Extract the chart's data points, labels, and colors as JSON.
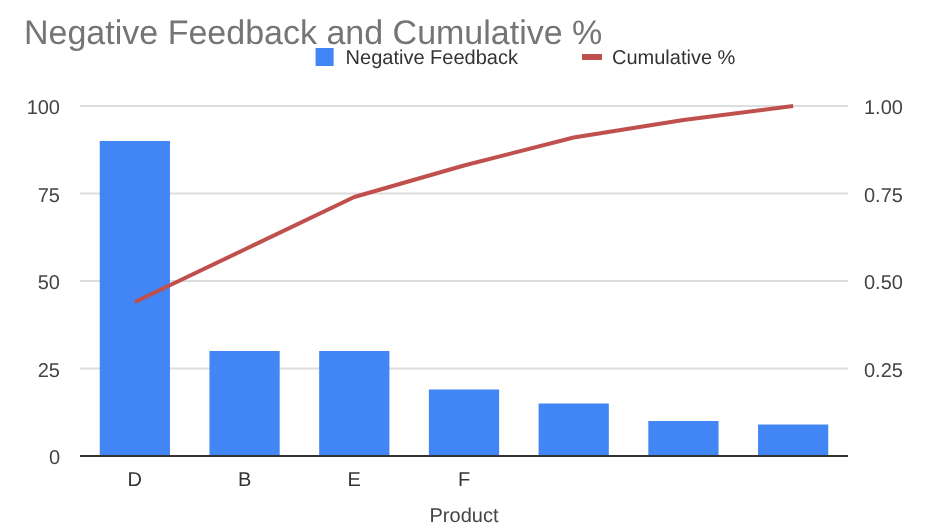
{
  "chart_data": {
    "type": "bar",
    "title": "Negative Feedback and Cumulative %",
    "xlabel": "Product",
    "categories": [
      "D",
      "B",
      "E",
      "F",
      null,
      null,
      null
    ],
    "series": [
      {
        "name": "Negative Feedback",
        "color": "#4285f4",
        "values": [
          90,
          30,
          30,
          19,
          15,
          10,
          9
        ]
      },
      {
        "name": "Cumulative %",
        "type": "line",
        "axis": "y2",
        "color": "#c0504d",
        "values": [
          0.44,
          0.59,
          0.74,
          0.83,
          0.91,
          0.96,
          1.0
        ]
      }
    ],
    "ylim": [
      0,
      100
    ],
    "yticks": [
      0,
      25,
      50,
      75,
      100
    ],
    "y2lim": [
      0,
      1
    ],
    "y2ticks": [
      {
        "value": 0.25,
        "label": "0.25"
      },
      {
        "value": 0.5,
        "label": "0.50"
      },
      {
        "value": 0.75,
        "label": "0.75"
      },
      {
        "value": 1,
        "label": "1.00"
      }
    ],
    "grid": "y",
    "legend": "top"
  }
}
